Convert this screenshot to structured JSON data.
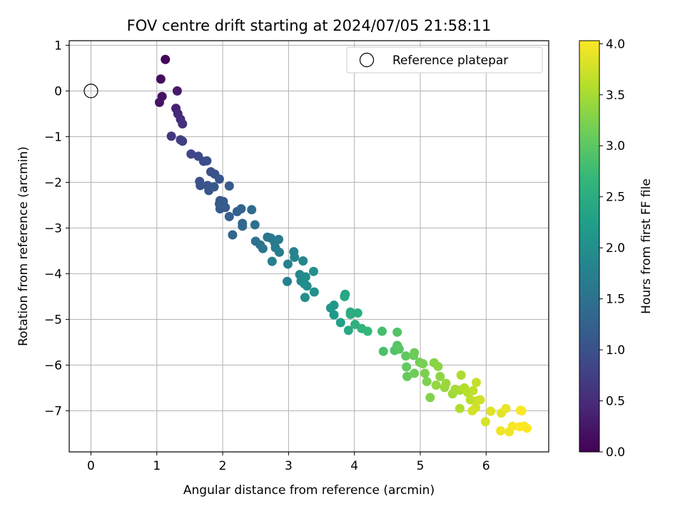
{
  "chart_data": {
    "type": "scatter",
    "title": "FOV centre drift starting at 2024/07/05 21:58:11",
    "xlabel": "Angular distance from reference (arcmin)",
    "ylabel": "Rotation from reference (arcmin)",
    "xlim": [
      -0.33,
      6.95
    ],
    "ylim": [
      -7.9,
      1.1
    ],
    "xticks": [
      0,
      1,
      2,
      3,
      4,
      5,
      6
    ],
    "yticks": [
      1,
      0,
      -1,
      -2,
      -3,
      -4,
      -5,
      -6,
      -7
    ],
    "grid": true,
    "legend": {
      "placement": "top-right",
      "entries": [
        "Reference platepar"
      ]
    },
    "reference_point": {
      "x": 0,
      "y": 0,
      "marker": "open-circle"
    },
    "colorbar": {
      "label": "Hours from first FF file",
      "range": [
        0.0,
        4.0
      ],
      "ticks": [
        "0.0",
        "0.5",
        "1.0",
        "1.5",
        "2.0",
        "2.5",
        "3.0",
        "3.5",
        "4.0"
      ],
      "colormap": "viridis"
    },
    "series": [
      {
        "points": [
          [
            1.13,
            0.69,
            0.05
          ],
          [
            1.06,
            0.26,
            0.12
          ],
          [
            1.08,
            -0.12,
            0.18
          ],
          [
            1.04,
            -0.25,
            0.22
          ],
          [
            1.31,
            0.0,
            0.28
          ],
          [
            1.29,
            -0.38,
            0.38
          ],
          [
            1.32,
            -0.5,
            0.45
          ],
          [
            1.36,
            -0.62,
            0.52
          ],
          [
            1.39,
            -0.72,
            0.58
          ],
          [
            1.22,
            -0.99,
            0.65
          ],
          [
            1.36,
            -1.07,
            0.72
          ],
          [
            1.39,
            -1.1,
            0.75
          ],
          [
            1.52,
            -1.38,
            0.82
          ],
          [
            1.63,
            -1.43,
            0.88
          ],
          [
            1.71,
            -1.54,
            0.92
          ],
          [
            1.76,
            -1.53,
            0.95
          ],
          [
            1.65,
            -1.98,
            1.0
          ],
          [
            1.66,
            -2.07,
            1.02
          ],
          [
            1.77,
            -2.07,
            1.05
          ],
          [
            1.79,
            -2.18,
            1.07
          ],
          [
            1.88,
            -1.82,
            1.0
          ],
          [
            1.82,
            -1.77,
            0.98
          ],
          [
            1.95,
            -1.93,
            1.05
          ],
          [
            1.87,
            -2.1,
            1.08
          ],
          [
            1.96,
            -2.4,
            1.1
          ],
          [
            1.95,
            -2.47,
            1.12
          ],
          [
            2.01,
            -2.42,
            1.12
          ],
          [
            2.04,
            -2.55,
            1.15
          ],
          [
            1.96,
            -2.58,
            1.15
          ],
          [
            2.1,
            -2.08,
            1.12
          ],
          [
            2.1,
            -2.75,
            1.2
          ],
          [
            2.22,
            -2.64,
            1.25
          ],
          [
            2.28,
            -2.58,
            1.28
          ],
          [
            2.15,
            -3.15,
            1.3
          ],
          [
            2.3,
            -2.9,
            1.32
          ],
          [
            2.3,
            -2.96,
            1.35
          ],
          [
            2.44,
            -2.6,
            1.38
          ],
          [
            2.49,
            -2.93,
            1.45
          ],
          [
            2.5,
            -3.29,
            1.48
          ],
          [
            2.57,
            -3.37,
            1.52
          ],
          [
            2.61,
            -3.45,
            1.55
          ],
          [
            2.68,
            -3.2,
            1.58
          ],
          [
            2.73,
            -3.22,
            1.6
          ],
          [
            2.79,
            -3.32,
            1.62
          ],
          [
            2.85,
            -3.25,
            1.65
          ],
          [
            2.8,
            -3.43,
            1.67
          ],
          [
            2.86,
            -3.53,
            1.7
          ],
          [
            2.75,
            -3.73,
            1.72
          ],
          [
            2.99,
            -3.79,
            1.75
          ],
          [
            2.98,
            -4.17,
            1.78
          ],
          [
            3.08,
            -3.52,
            1.8
          ],
          [
            3.09,
            -3.64,
            1.82
          ],
          [
            3.22,
            -3.72,
            1.85
          ],
          [
            3.17,
            -4.02,
            1.88
          ],
          [
            3.19,
            -4.16,
            1.9
          ],
          [
            3.24,
            -4.22,
            1.92
          ],
          [
            3.28,
            -4.27,
            1.95
          ],
          [
            3.26,
            -4.07,
            1.95
          ],
          [
            3.25,
            -4.52,
            1.98
          ],
          [
            3.38,
            -3.95,
            2.0
          ],
          [
            3.39,
            -4.4,
            2.02
          ],
          [
            3.64,
            -4.75,
            2.1
          ],
          [
            3.69,
            -4.69,
            2.12
          ],
          [
            3.69,
            -4.9,
            2.15
          ],
          [
            3.79,
            -5.07,
            2.25
          ],
          [
            3.86,
            -4.45,
            2.35
          ],
          [
            3.85,
            -4.5,
            2.38
          ],
          [
            3.91,
            -5.24,
            2.4
          ],
          [
            3.94,
            -4.84,
            2.45
          ],
          [
            3.94,
            -4.89,
            2.48
          ],
          [
            4.05,
            -4.86,
            2.5
          ],
          [
            4.01,
            -5.11,
            2.55
          ],
          [
            4.11,
            -5.2,
            2.6
          ],
          [
            4.2,
            -5.26,
            2.65
          ],
          [
            4.42,
            -5.26,
            2.8
          ],
          [
            4.44,
            -5.7,
            2.85
          ],
          [
            4.61,
            -5.68,
            2.88
          ],
          [
            4.65,
            -5.28,
            2.9
          ],
          [
            4.65,
            -5.57,
            2.92
          ],
          [
            4.68,
            -5.65,
            2.95
          ],
          [
            4.78,
            -5.8,
            3.0
          ],
          [
            4.79,
            -6.04,
            3.02
          ],
          [
            4.8,
            -6.25,
            3.05
          ],
          [
            4.9,
            -5.79,
            3.08
          ],
          [
            4.91,
            -5.73,
            3.1
          ],
          [
            4.91,
            -6.18,
            3.12
          ],
          [
            4.99,
            -5.94,
            3.15
          ],
          [
            5.04,
            -5.97,
            3.18
          ],
          [
            5.07,
            -6.18,
            3.2
          ],
          [
            5.1,
            -6.36,
            3.22
          ],
          [
            5.15,
            -6.71,
            3.25
          ],
          [
            5.21,
            -5.95,
            3.28
          ],
          [
            5.27,
            -6.03,
            3.3
          ],
          [
            5.3,
            -6.25,
            3.32
          ],
          [
            5.24,
            -6.44,
            3.35
          ],
          [
            5.37,
            -6.49,
            3.38
          ],
          [
            5.39,
            -6.4,
            3.4
          ],
          [
            5.49,
            -6.63,
            3.42
          ],
          [
            5.53,
            -6.53,
            3.45
          ],
          [
            5.6,
            -6.55,
            3.48
          ],
          [
            5.62,
            -6.22,
            3.5
          ],
          [
            5.6,
            -6.95,
            3.52
          ],
          [
            5.67,
            -6.5,
            3.55
          ],
          [
            5.72,
            -6.6,
            3.58
          ],
          [
            5.76,
            -6.76,
            3.6
          ],
          [
            5.8,
            -6.56,
            3.62
          ],
          [
            5.85,
            -6.38,
            3.65
          ],
          [
            5.86,
            -6.78,
            3.68
          ],
          [
            5.84,
            -6.93,
            3.7
          ],
          [
            5.91,
            -6.76,
            3.72
          ],
          [
            5.79,
            -7.0,
            3.75
          ],
          [
            5.99,
            -7.24,
            3.78
          ],
          [
            6.07,
            -7.01,
            3.82
          ],
          [
            6.23,
            -7.05,
            3.85
          ],
          [
            6.3,
            -6.95,
            3.88
          ],
          [
            6.22,
            -7.44,
            3.9
          ],
          [
            6.35,
            -7.46,
            3.92
          ],
          [
            6.4,
            -7.34,
            3.95
          ],
          [
            6.52,
            -6.99,
            3.97
          ],
          [
            6.54,
            -7.0,
            3.98
          ],
          [
            6.51,
            -7.35,
            4.0
          ],
          [
            6.58,
            -7.34,
            4.0
          ],
          [
            6.62,
            -7.38,
            4.02
          ]
        ]
      }
    ]
  }
}
